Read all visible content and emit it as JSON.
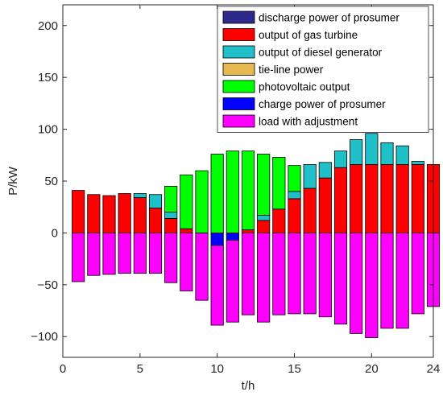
{
  "chart_data": {
    "type": "bar",
    "stacked": true,
    "title": "",
    "xlabel": "t/h",
    "ylabel": "P/kW",
    "xlim": [
      0,
      24
    ],
    "ylim": [
      -120,
      220
    ],
    "xticks": [
      0,
      5,
      10,
      15,
      20,
      24
    ],
    "yticks": [
      -100,
      -50,
      0,
      50,
      100,
      150,
      200
    ],
    "xtick_labels": [
      "0",
      "5",
      "10",
      "15",
      "20",
      "24"
    ],
    "ytick_labels": [
      "−100",
      "−50",
      "0",
      "50",
      "100",
      "150",
      "200"
    ],
    "grid": false,
    "legend_position": "top-right",
    "x": [
      1,
      2,
      3,
      4,
      5,
      6,
      7,
      8,
      9,
      10,
      11,
      12,
      13,
      14,
      15,
      16,
      17,
      18,
      19,
      20,
      21,
      22,
      23,
      24
    ],
    "series": [
      {
        "name": "discharge power of prosumer",
        "color": "#2e2a8c",
        "values": [
          0,
          0,
          0,
          0,
          0,
          0,
          0,
          0,
          0,
          0,
          0,
          0,
          0,
          0,
          0,
          0,
          0,
          0,
          0,
          0,
          0,
          0,
          0,
          0
        ]
      },
      {
        "name": "output of gas turbine",
        "color": "#ff0000",
        "values": [
          41,
          37,
          36,
          38,
          34,
          24,
          14,
          4,
          0,
          0,
          0,
          3,
          12,
          23,
          33,
          43,
          53,
          63,
          66,
          66,
          66,
          66,
          66,
          66
        ]
      },
      {
        "name": "output of diesel generator",
        "color": "#1fc0c8",
        "values": [
          0,
          0,
          0,
          0,
          4,
          13,
          6,
          0,
          0,
          0,
          0,
          0,
          5,
          0,
          7,
          23,
          15,
          16,
          24,
          30,
          21,
          18,
          3,
          0
        ]
      },
      {
        "name": "tie-line power",
        "color": "#e6b84e",
        "values": [
          0,
          0,
          0,
          0,
          0,
          0,
          0,
          0,
          0,
          0,
          0,
          0,
          0,
          0,
          0,
          0,
          0,
          0,
          0,
          0,
          0,
          0,
          0,
          0
        ]
      },
      {
        "name": "photovoltaic output",
        "color": "#00ff00",
        "values": [
          0,
          0,
          0,
          0,
          0,
          0,
          25,
          52,
          60,
          76,
          79,
          76,
          59,
          50,
          25,
          0,
          0,
          0,
          0,
          0,
          0,
          0,
          0,
          0
        ]
      },
      {
        "name": "charge power of prosumer",
        "color": "#0000ff",
        "values": [
          0,
          0,
          0,
          0,
          0,
          0,
          0,
          0,
          0,
          -12,
          -7,
          0,
          0,
          0,
          0,
          0,
          0,
          0,
          0,
          0,
          0,
          0,
          0,
          0
        ]
      },
      {
        "name": "load with adjustment",
        "color": "#ff00ff",
        "values": [
          -47,
          -41,
          -40,
          -39,
          -39,
          -39,
          -48,
          -56,
          -65,
          -77,
          -79,
          -79,
          -86,
          -79,
          -78,
          -78,
          -81,
          -88,
          -97,
          -101,
          -92,
          -92,
          -78,
          -71
        ]
      }
    ]
  }
}
